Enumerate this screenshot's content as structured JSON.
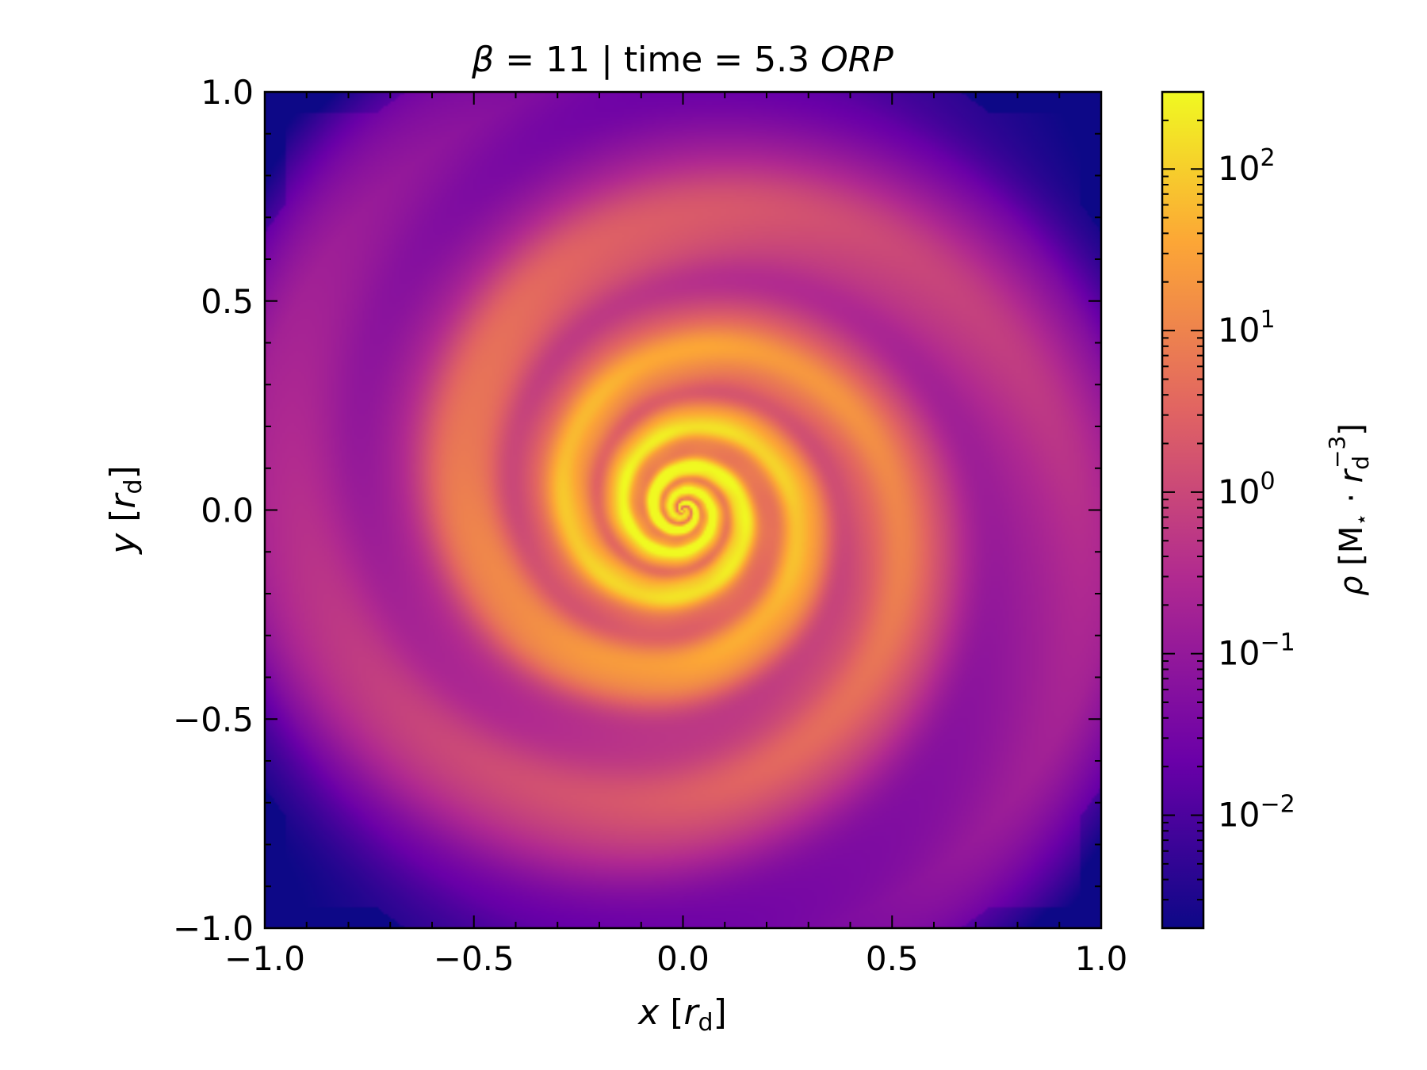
{
  "chart_data": {
    "type": "heatmap",
    "title": {
      "beta_symbol": "β",
      "beta_part": " = 11 | time = 5.3 ",
      "units_italic": "ORP"
    },
    "xlabel": {
      "var": "x",
      "unit_base": "r",
      "unit_sub": "d",
      "open": " [",
      "close": "]"
    },
    "ylabel": {
      "var": "y",
      "unit_base": "r",
      "unit_sub": "d",
      "open": " [",
      "close": "]"
    },
    "xlim": [
      -1.0,
      1.0
    ],
    "ylim": [
      -1.0,
      1.0
    ],
    "xticks": [
      {
        "value": -1.0,
        "label": "−1.0"
      },
      {
        "value": -0.5,
        "label": "−0.5"
      },
      {
        "value": 0.0,
        "label": "0.0"
      },
      {
        "value": 0.5,
        "label": "0.5"
      },
      {
        "value": 1.0,
        "label": "1.0"
      }
    ],
    "yticks": [
      {
        "value": -1.0,
        "label": "−1.0"
      },
      {
        "value": -0.5,
        "label": "−0.5"
      },
      {
        "value": 0.0,
        "label": "0.0"
      },
      {
        "value": 0.5,
        "label": "0.5"
      },
      {
        "value": 1.0,
        "label": "1.0"
      }
    ],
    "minor_tick_step": 0.1,
    "colorbar": {
      "scale": "log",
      "range": [
        0.002,
        300
      ],
      "colormap": "plasma",
      "colors": [
        "#0d0887",
        "#6a00a8",
        "#b12a90",
        "#e16462",
        "#fca636",
        "#f0f921"
      ],
      "label": {
        "symbol": "ρ",
        "open": " [M",
        "star": "⋆",
        "dot": " · ",
        "r": "r",
        "sub": "d",
        "sup": "−3",
        "close": "]"
      },
      "ticks": [
        {
          "value": 0.01,
          "base": "10",
          "exp": "−2"
        },
        {
          "value": 0.1,
          "base": "10",
          "exp": "−1"
        },
        {
          "value": 1,
          "base": "10",
          "exp": "0"
        },
        {
          "value": 10,
          "base": "10",
          "exp": "1"
        },
        {
          "value": 100,
          "base": "10",
          "exp": "2"
        }
      ]
    },
    "field": {
      "description_values": "log-density of a turbulent spiral disk, peak near center",
      "center_log_rho": 2.3,
      "corner_log_rho": -2.6
    }
  }
}
